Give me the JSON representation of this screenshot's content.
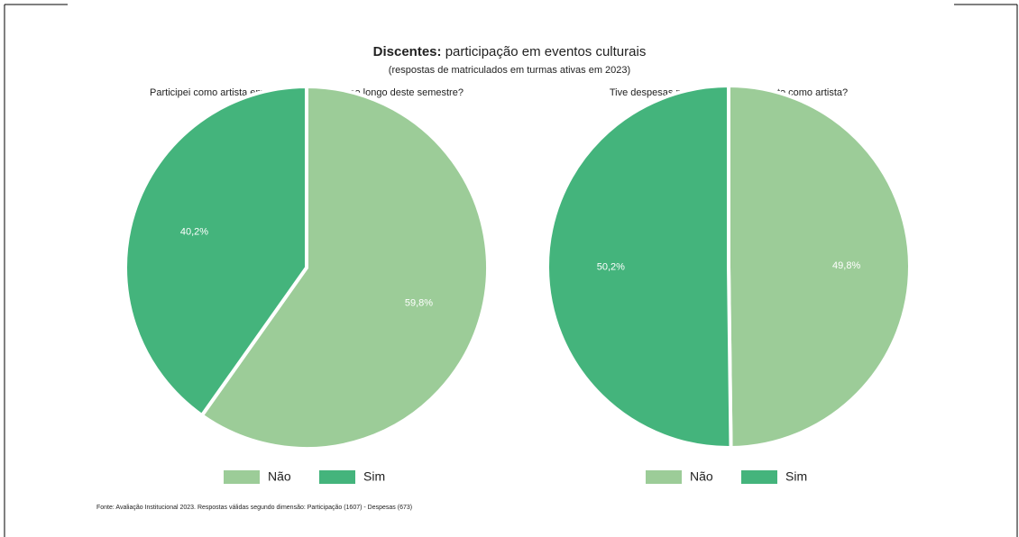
{
  "header": {
    "title_emphasis": "Discentes:",
    "title": "participação em eventos culturais",
    "subtitle": "(respostas de matriculados em turmas ativas em 2023)"
  },
  "footer": {
    "source": "Fonte: Avaliação Institucional 2023. Respostas válidas segundo dimensão: Participação (1607) - Despesas (673)"
  },
  "chart_data": [
    {
      "type": "pie",
      "title": "Participei como artista em eventos da escola ao longo deste semestre?",
      "categories": [
        "Não",
        "Sim"
      ],
      "values": [
        59.8,
        40.2
      ],
      "value_labels": [
        "59,8%",
        "40,2%"
      ],
      "colors": [
        "#9ccc98",
        "#44b47c"
      ]
    },
    {
      "type": "pie",
      "title": "Tive despesas para participar do evento como artista?",
      "categories": [
        "Não",
        "Sim"
      ],
      "values": [
        49.8,
        50.2
      ],
      "value_labels": [
        "49,8%",
        "50,2%"
      ],
      "colors": [
        "#9ccc98",
        "#44b47c"
      ]
    }
  ]
}
